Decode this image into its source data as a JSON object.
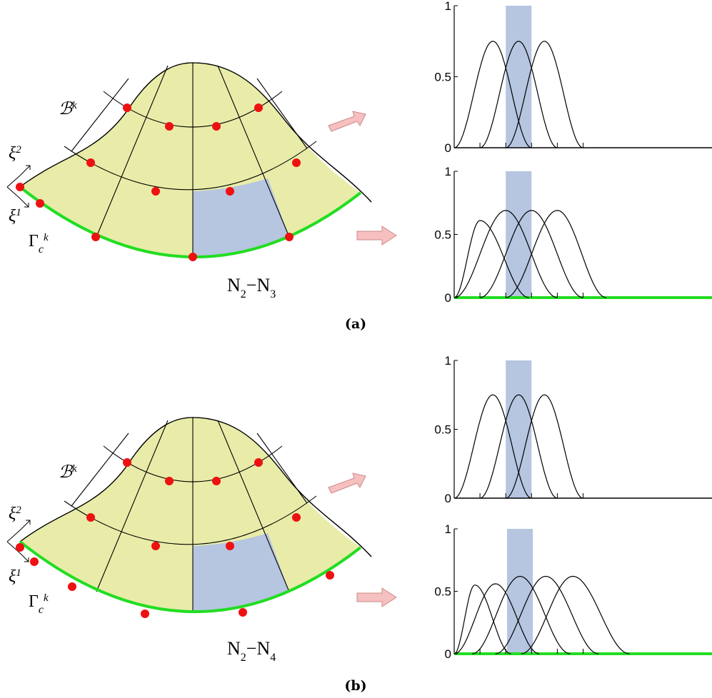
{
  "panels": [
    {
      "caption": "(a)",
      "diagram": {
        "body": "ℬ",
        "body_sup": "k",
        "xi_a": "ξ",
        "xi_a_sup": "2",
        "xi_b": "ξ",
        "xi_b_sup": "1",
        "gamma": "Γ",
        "gamma_sub": "c",
        "gamma_sup": "k",
        "left": "N",
        "left_sub": "2",
        "op": "−",
        "right": "N",
        "right_sub": "3"
      },
      "plots": [
        {
          "type": "line",
          "xlim": [
            0,
            10
          ],
          "ylim": [
            0,
            1
          ],
          "yticks": [
            0,
            0.5,
            1
          ],
          "xticks": [
            1,
            2,
            3,
            4,
            5
          ],
          "highlight": [
            2,
            3
          ],
          "highlight_color": "#b6c5e0",
          "curves": [
            {
              "support": [
                0,
                3
              ],
              "center": 1.5,
              "peak": 0.75
            },
            {
              "support": [
                1,
                4
              ],
              "center": 2.5,
              "peak": 0.75
            },
            {
              "support": [
                2,
                5
              ],
              "center": 3.5,
              "peak": 0.75
            }
          ]
        },
        {
          "type": "line",
          "xlim": [
            0,
            10
          ],
          "ylim": [
            0,
            1
          ],
          "yticks": [
            0,
            0.5,
            1
          ],
          "xticks": [
            1,
            2,
            3,
            4,
            5
          ],
          "highlight": [
            2,
            3
          ],
          "highlight_color": "#b6c5e0",
          "baseline_color": "#22dd22",
          "curves": [
            {
              "support": [
                0,
                2.9
              ],
              "center": 1,
              "peak": 0.61
            },
            {
              "support": [
                0,
                4
              ],
              "center": 2,
              "peak": 0.69
            },
            {
              "support": [
                1,
                5
              ],
              "center": 3,
              "peak": 0.69
            },
            {
              "support": [
                2,
                5.9
              ],
              "center": 4,
              "peak": 0.69
            }
          ]
        }
      ]
    },
    {
      "caption": "(b)",
      "diagram": {
        "body": "ℬ",
        "body_sup": "k",
        "xi_a": "ξ",
        "xi_a_sup": "2",
        "xi_b": "ξ",
        "xi_b_sup": "1",
        "gamma": "Γ",
        "gamma_sub": "c",
        "gamma_sup": "k",
        "left": "N",
        "left_sub": "2",
        "op": "−",
        "right": "N",
        "right_sub": "4"
      },
      "plots": [
        {
          "type": "line",
          "xlim": [
            0,
            10
          ],
          "ylim": [
            0,
            1
          ],
          "yticks": [
            0,
            0.5,
            1
          ],
          "xticks": [
            1,
            2,
            3,
            4,
            5
          ],
          "highlight": [
            2,
            3
          ],
          "highlight_color": "#b6c5e0",
          "curves": [
            {
              "support": [
                0,
                3
              ],
              "center": 1.5,
              "peak": 0.75
            },
            {
              "support": [
                1,
                4
              ],
              "center": 2.5,
              "peak": 0.75
            },
            {
              "support": [
                2,
                5
              ],
              "center": 3.5,
              "peak": 0.75
            }
          ]
        },
        {
          "type": "line",
          "xlim": [
            0,
            10
          ],
          "ylim": [
            0,
            1
          ],
          "yticks": [
            0,
            0.5,
            1
          ],
          "xticks": [
            1,
            2,
            3,
            4,
            5
          ],
          "highlight": [
            2.05,
            3.05
          ],
          "highlight_color": "#b6c5e0",
          "baseline_color": "#22dd22",
          "curves": [
            {
              "support": [
                0,
                2.2
              ],
              "center": 0.8,
              "peak": 0.55
            },
            {
              "support": [
                0,
                3.3
              ],
              "center": 1.6,
              "peak": 0.56
            },
            {
              "support": [
                0.7,
                4.5
              ],
              "center": 2.55,
              "peak": 0.62
            },
            {
              "support": [
                1.6,
                5.6
              ],
              "center": 3.55,
              "peak": 0.62
            },
            {
              "support": [
                2.6,
                6.8
              ],
              "center": 4.6,
              "peak": 0.62
            }
          ]
        }
      ]
    }
  ]
}
